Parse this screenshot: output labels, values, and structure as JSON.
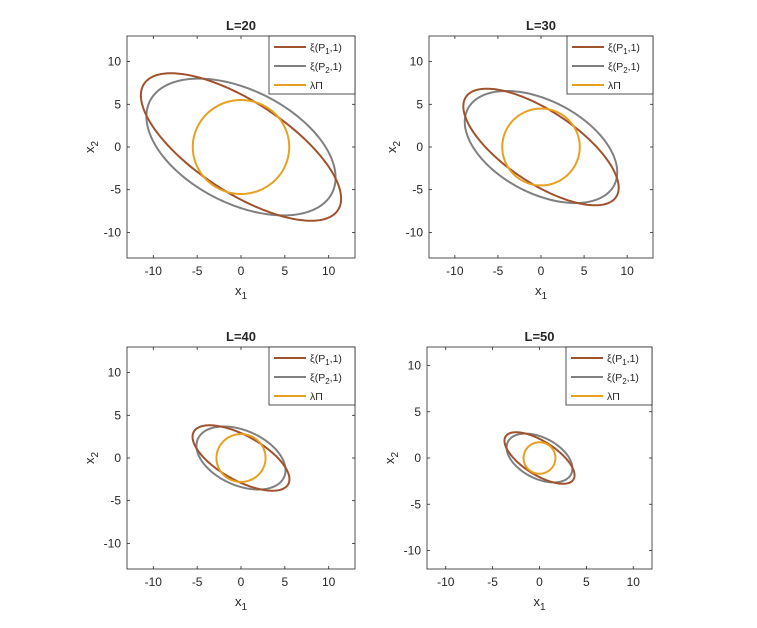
{
  "colors": {
    "P1": "#a0522d",
    "P2": "#808080",
    "lam": "#e8a020",
    "axis": "#262626"
  },
  "chart_data": [
    {
      "type": "line",
      "title": "L=20",
      "xlabel": "x",
      "xlabel_sub": "1",
      "ylabel": "x",
      "ylabel_sub": "2",
      "xlim": [
        -13,
        13
      ],
      "ylim": [
        -13,
        13
      ],
      "xticks": [
        -10,
        -5,
        0,
        5,
        10
      ],
      "yticks": [
        -10,
        -5,
        0,
        5,
        10
      ],
      "legend": {
        "placement": "top-right"
      },
      "series": [
        {
          "name": "ξ(P1,1)",
          "name_main": "ξ(P",
          "name_sub": "1",
          "name_tail": ",1)",
          "color_key": "P1",
          "shape": "ellipse",
          "center": [
            0,
            0
          ],
          "semi_major": 13.3,
          "semi_minor": 5.3,
          "angle_deg": -34
        },
        {
          "name": "ξ(P2,1)",
          "name_main": "ξ(P",
          "name_sub": "2",
          "name_tail": ",1)",
          "color_key": "P2",
          "shape": "ellipse",
          "center": [
            0,
            0
          ],
          "semi_major": 11.7,
          "semi_minor": 6.6,
          "angle_deg": -28
        },
        {
          "name": "λΠ",
          "name_main": "λΠ",
          "name_sub": "",
          "name_tail": "",
          "color_key": "lam",
          "shape": "circle",
          "center": [
            0,
            0
          ],
          "radius": 5.5
        }
      ]
    },
    {
      "type": "line",
      "title": "L=30",
      "xlabel": "x",
      "xlabel_sub": "1",
      "ylabel": "x",
      "ylabel_sub": "2",
      "xlim": [
        -13,
        13
      ],
      "ylim": [
        -13,
        13
      ],
      "xticks": [
        -10,
        -5,
        0,
        5,
        10
      ],
      "yticks": [
        -10,
        -5,
        0,
        5,
        10
      ],
      "legend": {
        "placement": "top-right"
      },
      "series": [
        {
          "name": "ξ(P1,1)",
          "name_main": "ξ(P",
          "name_sub": "1",
          "name_tail": ",1)",
          "color_key": "P1",
          "shape": "ellipse",
          "center": [
            0,
            0
          ],
          "semi_major": 10.5,
          "semi_minor": 4.2,
          "angle_deg": -34
        },
        {
          "name": "ξ(P2,1)",
          "name_main": "ξ(P",
          "name_sub": "2",
          "name_tail": ",1)",
          "color_key": "P2",
          "shape": "ellipse",
          "center": [
            0,
            0
          ],
          "semi_major": 9.6,
          "semi_minor": 5.4,
          "angle_deg": -28
        },
        {
          "name": "λΠ",
          "name_main": "λΠ",
          "name_sub": "",
          "name_tail": "",
          "color_key": "lam",
          "shape": "circle",
          "center": [
            0,
            0
          ],
          "radius": 4.5
        }
      ]
    },
    {
      "type": "line",
      "title": "L=40",
      "xlabel": "x",
      "xlabel_sub": "1",
      "ylabel": "x",
      "ylabel_sub": "2",
      "xlim": [
        -13,
        13
      ],
      "ylim": [
        -13,
        13
      ],
      "xticks": [
        -10,
        -5,
        0,
        5,
        10
      ],
      "yticks": [
        -10,
        -5,
        0,
        5,
        10
      ],
      "legend": {
        "placement": "top-right"
      },
      "series": [
        {
          "name": "ξ(P1,1)",
          "name_main": "ξ(P",
          "name_sub": "1",
          "name_tail": ",1)",
          "color_key": "P1",
          "shape": "ellipse",
          "center": [
            0,
            0
          ],
          "semi_major": 6.2,
          "semi_minor": 2.6,
          "angle_deg": -30
        },
        {
          "name": "ξ(P2,1)",
          "name_main": "ξ(P",
          "name_sub": "2",
          "name_tail": ",1)",
          "color_key": "P2",
          "shape": "ellipse",
          "center": [
            0,
            0
          ],
          "semi_major": 5.4,
          "semi_minor": 3.2,
          "angle_deg": -25
        },
        {
          "name": "λΠ",
          "name_main": "λΠ",
          "name_sub": "",
          "name_tail": "",
          "color_key": "lam",
          "shape": "circle",
          "center": [
            0,
            0
          ],
          "radius": 2.8
        }
      ]
    },
    {
      "type": "line",
      "title": "L=50",
      "xlabel": "x",
      "xlabel_sub": "1",
      "ylabel": "x",
      "ylabel_sub": "2",
      "xlim": [
        -12,
        12
      ],
      "ylim": [
        -12,
        12
      ],
      "xticks": [
        -10,
        -5,
        0,
        5,
        10
      ],
      "yticks": [
        -10,
        -5,
        0,
        5,
        10
      ],
      "legend": {
        "placement": "top-right"
      },
      "series": [
        {
          "name": "ξ(P1,1)",
          "name_main": "ξ(P",
          "name_sub": "1",
          "name_tail": ",1)",
          "color_key": "P1",
          "shape": "ellipse",
          "center": [
            0,
            0
          ],
          "semi_major": 4.3,
          "semi_minor": 1.8,
          "angle_deg": -33
        },
        {
          "name": "ξ(P2,1)",
          "name_main": "ξ(P",
          "name_sub": "2",
          "name_tail": ",1)",
          "color_key": "P2",
          "shape": "ellipse",
          "center": [
            0,
            0
          ],
          "semi_major": 3.8,
          "semi_minor": 2.2,
          "angle_deg": -28
        },
        {
          "name": "λΠ",
          "name_main": "λΠ",
          "name_sub": "",
          "name_tail": "",
          "color_key": "lam",
          "shape": "circle",
          "center": [
            0,
            0
          ],
          "radius": 1.7
        }
      ]
    }
  ]
}
